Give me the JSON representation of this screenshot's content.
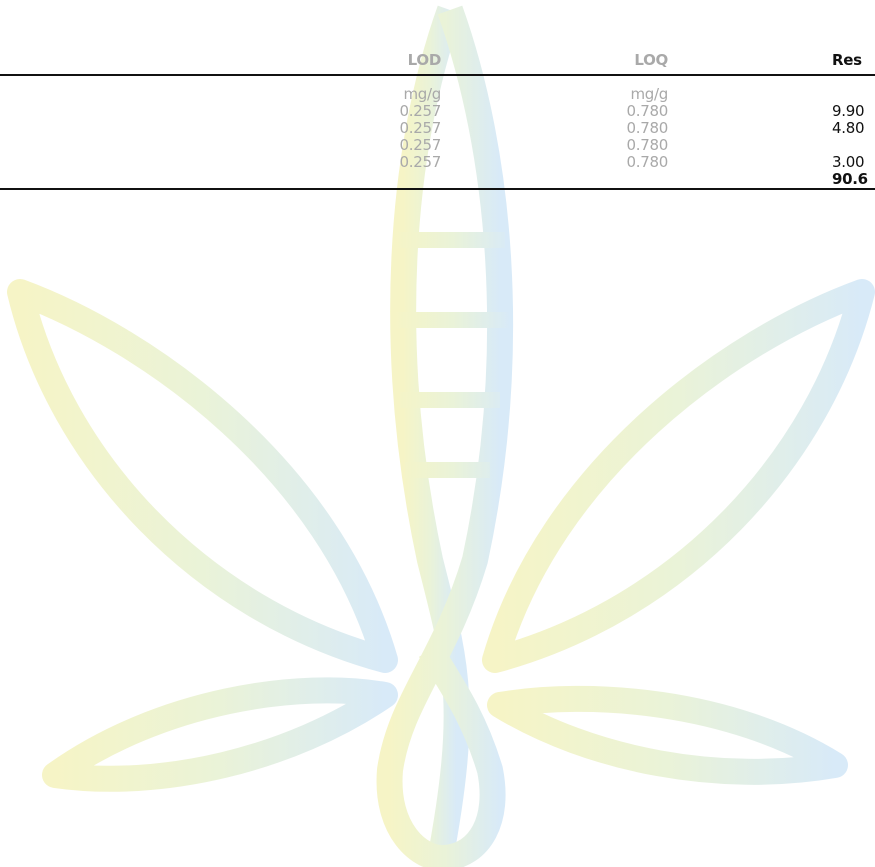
{
  "table": {
    "header": {
      "lod": "LOD",
      "loq": "LOQ",
      "result": "Res"
    },
    "units": {
      "lod": "mg/g",
      "loq": "mg/g"
    },
    "rows": [
      {
        "lod": "0.257",
        "loq": "0.780",
        "result": "9.90"
      },
      {
        "lod": "0.257",
        "loq": "0.780",
        "result": "4.80"
      },
      {
        "lod": "0.257",
        "loq": "0.780"
      },
      {
        "lod": "0.257",
        "loq": "0.780",
        "result": "3.00"
      }
    ],
    "total": {
      "result": "90.6"
    }
  }
}
